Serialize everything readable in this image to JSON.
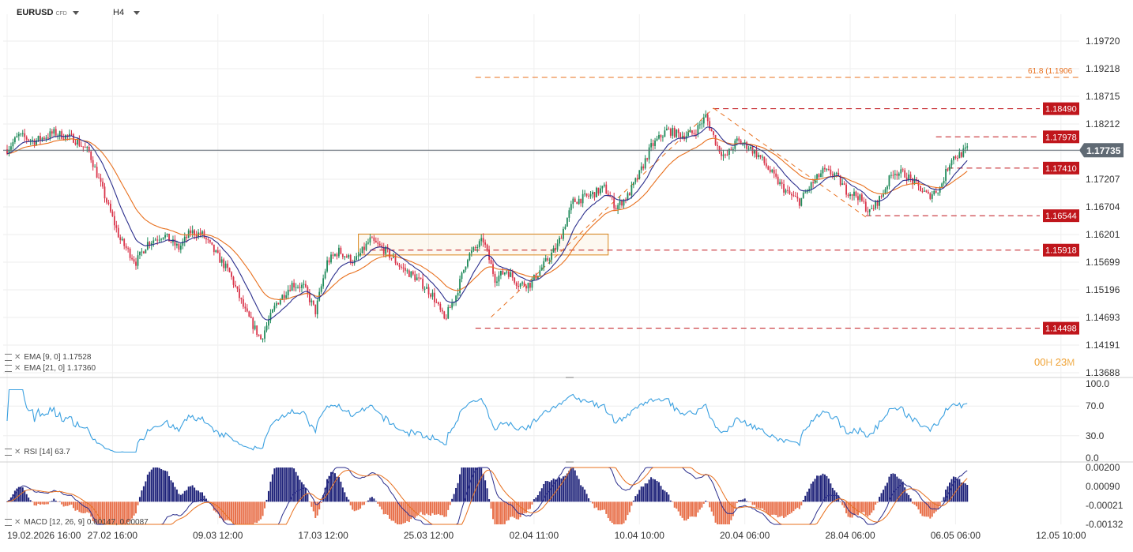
{
  "header": {
    "symbol": "EURUSD",
    "symbol_badge": "CFD",
    "timeframe": "H4"
  },
  "timer": {
    "hours": "00",
    "hours_unit": "H",
    "minutes": "23",
    "minutes_unit": "M"
  },
  "indicators": {
    "ema9_label": "EMA [9, 0] 1.17528",
    "ema21_label": "EMA [21, 0] 1.17360",
    "rsi_label": "RSI [14] 63.7",
    "macd_label": "MACD [12, 26, 9] 0.00147, 0.00087"
  },
  "colors": {
    "bull": "#1f8a5a",
    "bear": "#d9344a",
    "ema9": "#2b2e8c",
    "ema21": "#e8701e",
    "level": "#c0161c",
    "fib": "#e8701e",
    "rsi": "#3aa0e0",
    "macd_pos": "#1f237a",
    "macd_neg": "#e8704a",
    "current_price": "#606a74"
  },
  "chart_data": [
    {
      "type": "candlestick",
      "title": "EURUSD H4",
      "x_tick_labels": [
        "19.02.2026 16:00",
        "27.02 16:00",
        "09.03 12:00",
        "17.03 12:00",
        "25.03 12:00",
        "02.04 11:00",
        "10.04 10:00",
        "20.04 06:00",
        "28.04 06:00",
        "06.05 06:00",
        "12.05 10:00"
      ],
      "y_tick_labels": [
        "1.19720",
        "1.19218",
        "1.18715",
        "1.18212",
        "1.17709",
        "1.17207",
        "1.16704",
        "1.16201",
        "1.15699",
        "1.15196",
        "1.14693",
        "1.14191",
        "1.13688"
      ],
      "ylim": [
        1.13688,
        1.1972
      ],
      "current_price": "1.17735",
      "price_levels": [
        {
          "label": "1.18490",
          "value": 1.1849
        },
        {
          "label": "1.17978",
          "value": 1.17978
        },
        {
          "label": "1.17410",
          "value": 1.1741
        },
        {
          "label": "1.16544",
          "value": 1.16544
        },
        {
          "label": "1.15918",
          "value": 1.15918
        },
        {
          "label": "1.14498",
          "value": 1.14498
        }
      ],
      "fib_label": "61.8 (1.1906",
      "fib_value": 1.1906,
      "zone": {
        "top": 1.1621,
        "bottom": 1.1583
      },
      "anchors": [
        [
          0,
          1.1775
        ],
        [
          6,
          1.18
        ],
        [
          14,
          1.179
        ],
        [
          24,
          1.1805
        ],
        [
          34,
          1.1795
        ],
        [
          42,
          1.177
        ],
        [
          48,
          1.171
        ],
        [
          58,
          1.161
        ],
        [
          66,
          1.157
        ],
        [
          72,
          1.1605
        ],
        [
          80,
          1.162
        ],
        [
          88,
          1.1595
        ],
        [
          94,
          1.1625
        ],
        [
          100,
          1.162
        ],
        [
          106,
          1.159
        ],
        [
          114,
          1.155
        ],
        [
          122,
          1.148
        ],
        [
          130,
          1.143
        ],
        [
          138,
          1.1495
        ],
        [
          146,
          1.153
        ],
        [
          152,
          1.1525
        ],
        [
          158,
          1.148
        ],
        [
          164,
          1.157
        ],
        [
          170,
          1.159
        ],
        [
          178,
          1.157
        ],
        [
          186,
          1.161
        ],
        [
          194,
          1.159
        ],
        [
          202,
          1.156
        ],
        [
          210,
          1.154
        ],
        [
          218,
          1.151
        ],
        [
          224,
          1.1465
        ],
        [
          230,
          1.151
        ],
        [
          236,
          1.158
        ],
        [
          244,
          1.161
        ],
        [
          250,
          1.154
        ],
        [
          256,
          1.1555
        ],
        [
          262,
          1.153
        ],
        [
          268,
          1.153
        ],
        [
          274,
          1.156
        ],
        [
          282,
          1.16
        ],
        [
          290,
          1.168
        ],
        [
          298,
          1.169
        ],
        [
          306,
          1.1705
        ],
        [
          312,
          1.167
        ],
        [
          318,
          1.169
        ],
        [
          324,
          1.173
        ],
        [
          330,
          1.178
        ],
        [
          338,
          1.181
        ],
        [
          346,
          1.18
        ],
        [
          352,
          1.1805
        ],
        [
          358,
          1.1835
        ],
        [
          364,
          1.178
        ],
        [
          368,
          1.176
        ],
        [
          374,
          1.179
        ],
        [
          380,
          1.178
        ],
        [
          386,
          1.176
        ],
        [
          394,
          1.172
        ],
        [
          400,
          1.1695
        ],
        [
          406,
          1.168
        ],
        [
          412,
          1.171
        ],
        [
          418,
          1.1735
        ],
        [
          424,
          1.173
        ],
        [
          430,
          1.17
        ],
        [
          436,
          1.169
        ],
        [
          442,
          1.166
        ],
        [
          448,
          1.169
        ],
        [
          454,
          1.1735
        ],
        [
          460,
          1.173
        ],
        [
          466,
          1.171
        ],
        [
          472,
          1.169
        ],
        [
          478,
          1.1705
        ],
        [
          484,
          1.176
        ],
        [
          488,
          1.1765
        ],
        [
          492,
          1.1775
        ]
      ]
    },
    {
      "type": "line",
      "title": "RSI [14]",
      "y_tick_labels": [
        "100.0",
        "70.0",
        "30.0",
        "0.0"
      ],
      "ylim": [
        0,
        100
      ],
      "last_value": 63.7
    },
    {
      "type": "bar",
      "title": "MACD [12, 26, 9]",
      "y_tick_labels": [
        "0.00200",
        "0.00090",
        "-0.00021",
        "-0.00132"
      ],
      "ylim": [
        -0.00132,
        0.002
      ],
      "macd_value": 0.00147,
      "signal_value": 0.00087
    }
  ]
}
